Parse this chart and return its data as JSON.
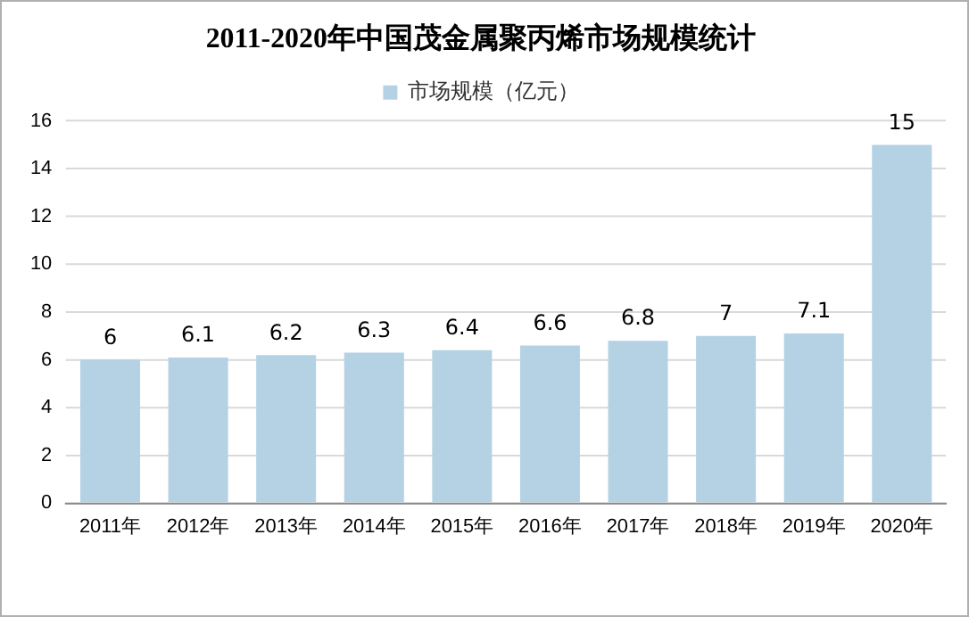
{
  "chart_data": {
    "type": "bar",
    "title": "2011-2020年中国茂金属聚丙烯市场规模统计",
    "categories": [
      "2011年",
      "2012年",
      "2013年",
      "2014年",
      "2015年",
      "2016年",
      "2017年",
      "2018年",
      "2019年",
      "2020年"
    ],
    "series": [
      {
        "name": "市场规模（亿元）",
        "color": "#b4d2e4",
        "values": [
          6,
          6.1,
          6.2,
          6.3,
          6.4,
          6.6,
          6.8,
          7,
          7.1,
          15
        ]
      }
    ],
    "ylim": [
      0,
      16
    ],
    "yticks": [
      0,
      2,
      4,
      6,
      8,
      10,
      12,
      14,
      16
    ],
    "grid": "y",
    "legend": "top",
    "data_labels": true
  }
}
